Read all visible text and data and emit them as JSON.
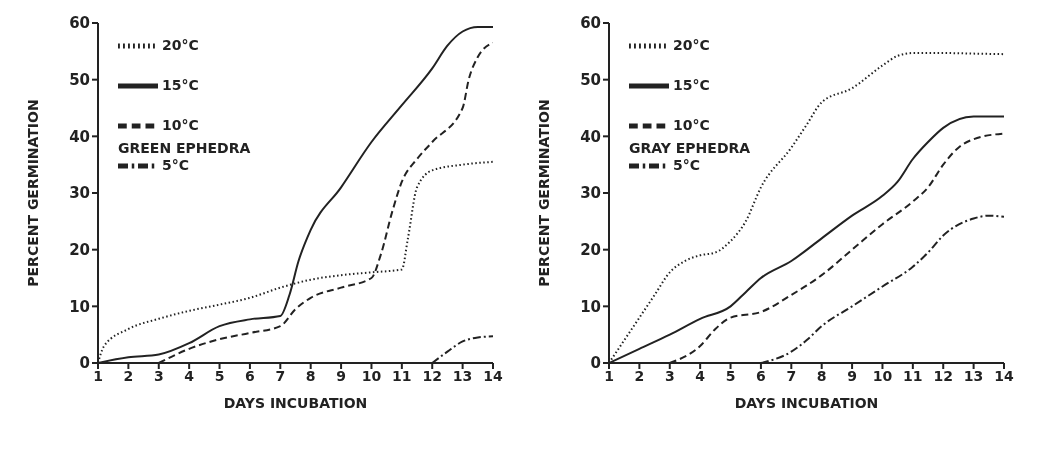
{
  "chart_data": [
    {
      "type": "line",
      "xlabel": "DAYS INCUBATION",
      "ylabel": "PERCENT GERMINATION",
      "annotations": [
        "GREEN EPHEDRA"
      ],
      "xlim": [
        1,
        14
      ],
      "ylim": [
        0,
        60
      ],
      "xticks": [
        1,
        2,
        3,
        4,
        5,
        6,
        7,
        8,
        9,
        10,
        11,
        12,
        13,
        14
      ],
      "yticks": [
        0,
        10,
        20,
        30,
        40,
        50,
        60
      ],
      "grid": false,
      "legend": "top left",
      "series": [
        {
          "name": "20°C",
          "color": "#222222",
          "line_style": "dotted",
          "x": [
            1,
            1.2,
            2,
            3,
            4,
            5,
            6,
            7,
            8,
            9,
            10,
            11,
            11.2,
            11.5,
            12,
            13,
            14
          ],
          "values": [
            0,
            3,
            6,
            7.8,
            9.2,
            10.3,
            11.5,
            13.3,
            14.7,
            15.5,
            16,
            16.5,
            22,
            31,
            34,
            35,
            35.5
          ]
        },
        {
          "name": "15°C",
          "color": "#222222",
          "line_style": "solid",
          "x": [
            1,
            2,
            3,
            4,
            5,
            6,
            7,
            7.3,
            7.6,
            8,
            9,
            10,
            11,
            12,
            12.5,
            13,
            13.5,
            14
          ],
          "values": [
            0,
            1,
            1.5,
            3.5,
            6.5,
            7.7,
            8.3,
            12,
            18,
            23.5,
            31,
            39,
            45.5,
            52,
            56,
            58.5,
            59.3,
            59.3
          ]
        },
        {
          "name": "10°C",
          "color": "#222222",
          "line_style": "dashed",
          "x": [
            3,
            4,
            5,
            6,
            7,
            7.5,
            8,
            9,
            10,
            10.3,
            10.7,
            11,
            11.5,
            12,
            13,
            13.2,
            13.5,
            14
          ],
          "values": [
            0,
            2.5,
            4.2,
            5.3,
            6.5,
            9.5,
            11.5,
            13.3,
            15,
            19,
            27,
            32,
            36,
            39,
            45,
            50,
            54,
            56.5
          ]
        },
        {
          "name": "5°C",
          "color": "#222222",
          "line_style": "dashdot",
          "x": [
            12,
            12.5,
            13,
            13.5,
            14
          ],
          "values": [
            0,
            2,
            3.8,
            4.5,
            4.7
          ]
        }
      ]
    },
    {
      "type": "line",
      "xlabel": "DAYS INCUBATION",
      "ylabel": "PERCENT GERMINATION",
      "annotations": [
        "GRAY EPHEDRA"
      ],
      "xlim": [
        1,
        14
      ],
      "ylim": [
        0,
        60
      ],
      "xticks": [
        1,
        2,
        3,
        4,
        5,
        6,
        7,
        8,
        9,
        10,
        11,
        12,
        13,
        14
      ],
      "yticks": [
        0,
        10,
        20,
        30,
        40,
        50,
        60
      ],
      "grid": false,
      "legend": "top left",
      "series": [
        {
          "name": "20°C",
          "color": "#222222",
          "line_style": "dotted",
          "x": [
            1,
            2,
            2.5,
            3,
            3.5,
            4,
            4.5,
            5,
            5.5,
            6,
            7,
            7.5,
            8,
            9,
            10,
            10.5,
            11,
            12,
            13,
            14
          ],
          "values": [
            0,
            8,
            12,
            16,
            18,
            19,
            19.5,
            21.5,
            25,
            31,
            38,
            42,
            46,
            48.5,
            52.5,
            54.2,
            54.7,
            54.7,
            54.6,
            54.5
          ]
        },
        {
          "name": "15°C",
          "color": "#222222",
          "line_style": "solid",
          "x": [
            1,
            2,
            3,
            4,
            5,
            5.5,
            6,
            7,
            8,
            9,
            10,
            10.5,
            11,
            11.5,
            12,
            13,
            14
          ],
          "values": [
            0,
            2.5,
            5,
            7.8,
            10,
            12.5,
            15,
            18,
            22,
            26,
            29.5,
            32,
            36,
            39,
            41.5,
            43.5,
            43.5
          ]
        },
        {
          "name": "10°C",
          "color": "#222222",
          "line_style": "dashed",
          "x": [
            3,
            4,
            4.5,
            5,
            6,
            7,
            8,
            9,
            10,
            11,
            11.5,
            12,
            12.5,
            13,
            14
          ],
          "values": [
            0,
            3,
            6,
            8,
            9,
            12,
            15.5,
            20,
            24.5,
            28.5,
            31,
            35,
            38,
            39.5,
            40.5
          ]
        },
        {
          "name": "5°C",
          "color": "#222222",
          "line_style": "dashdot",
          "x": [
            6,
            7,
            7.5,
            8,
            9,
            10,
            11,
            11.5,
            12,
            13,
            13.5,
            14
          ],
          "values": [
            0,
            2,
            4,
            6.5,
            10,
            13.5,
            17,
            19.5,
            22.5,
            25.5,
            26,
            25.8
          ]
        }
      ]
    }
  ]
}
